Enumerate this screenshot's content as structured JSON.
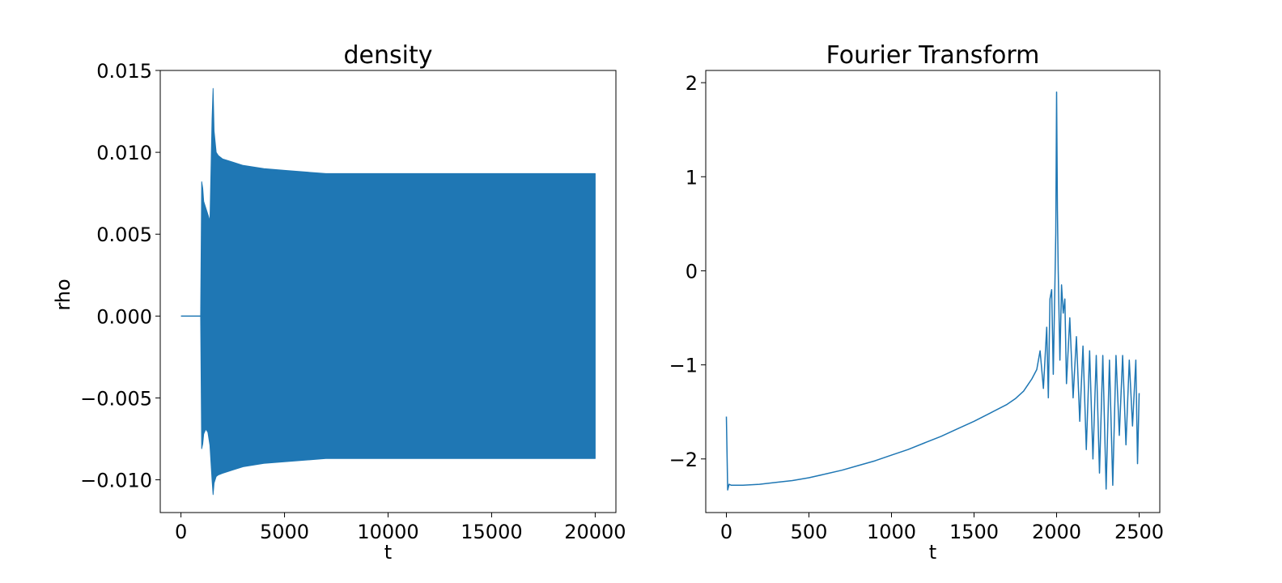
{
  "chart_data": [
    {
      "type": "line",
      "title": "density",
      "xlabel": "t",
      "ylabel": "rho",
      "xlim": [
        -1000,
        21000
      ],
      "ylim": [
        -0.012,
        0.015
      ],
      "xticks": [
        0,
        5000,
        10000,
        15000,
        20000
      ],
      "xtick_labels": [
        "0",
        "5000",
        "10000",
        "15000",
        "20000"
      ],
      "yticks": [
        -0.01,
        -0.005,
        0.0,
        0.005,
        0.01,
        0.015
      ],
      "ytick_labels": [
        "−0.010",
        "−0.005",
        "0.000",
        "0.005",
        "0.010",
        "0.015"
      ],
      "grid": false,
      "color": "#1f77b4",
      "series": [
        {
          "flat_segment": {
            "x": [
              0,
              950
            ],
            "y": 0.0
          },
          "envelope": {
            "x": [
              950,
              1000,
              1050,
              1100,
              1200,
              1300,
              1400,
              1500,
              1550,
              1600,
              1700,
              1800,
              2000,
              2500,
              3000,
              4000,
              5000,
              6000,
              7000,
              10000,
              15000,
              20000
            ],
            "upper": [
              0.0,
              0.0082,
              0.0078,
              0.007,
              0.0066,
              0.0062,
              0.0058,
              0.012,
              0.0139,
              0.0113,
              0.01,
              0.0098,
              0.0096,
              0.0094,
              0.0092,
              0.009,
              0.0089,
              0.0088,
              0.0087,
              0.0087,
              0.0087,
              0.0087
            ],
            "lower": [
              0.0,
              -0.0081,
              -0.0078,
              -0.0072,
              -0.0069,
              -0.0071,
              -0.0079,
              -0.01,
              -0.0109,
              -0.0102,
              -0.0098,
              -0.0097,
              -0.0096,
              -0.0094,
              -0.0092,
              -0.009,
              -0.0089,
              -0.0088,
              -0.0087,
              -0.0087,
              -0.0087,
              -0.0087
            ]
          }
        }
      ]
    },
    {
      "type": "line",
      "title": "Fourier Transform",
      "xlabel": "t",
      "ylabel": "",
      "xlim": [
        -125,
        2625
      ],
      "ylim": [
        -2.57,
        2.13
      ],
      "xticks": [
        0,
        500,
        1000,
        1500,
        2000,
        2500
      ],
      "xtick_labels": [
        "0",
        "500",
        "1000",
        "1500",
        "2000",
        "2500"
      ],
      "yticks": [
        -2,
        -1,
        0,
        1,
        2
      ],
      "ytick_labels": [
        "−2",
        "−1",
        "0",
        "1",
        "2"
      ],
      "grid": false,
      "color": "#1f77b4",
      "series": [
        {
          "x": [
            0,
            8,
            16,
            30,
            60,
            100,
            200,
            300,
            400,
            500,
            600,
            700,
            800,
            900,
            1000,
            1100,
            1200,
            1300,
            1400,
            1500,
            1600,
            1700,
            1750,
            1800,
            1850,
            1880,
            1900,
            1920,
            1940,
            1950,
            1960,
            1970,
            1980,
            1990,
            1995,
            2000,
            2005,
            2010,
            2020,
            2030,
            2040,
            2050,
            2060,
            2080,
            2100,
            2120,
            2140,
            2160,
            2180,
            2200,
            2220,
            2240,
            2260,
            2280,
            2300,
            2320,
            2340,
            2360,
            2380,
            2400,
            2420,
            2440,
            2460,
            2480,
            2490,
            2500
          ],
          "y": [
            -1.55,
            -2.33,
            -2.27,
            -2.28,
            -2.28,
            -2.28,
            -2.27,
            -2.25,
            -2.23,
            -2.2,
            -2.16,
            -2.12,
            -2.07,
            -2.02,
            -1.96,
            -1.9,
            -1.83,
            -1.76,
            -1.68,
            -1.6,
            -1.51,
            -1.42,
            -1.36,
            -1.28,
            -1.15,
            -1.05,
            -0.85,
            -1.25,
            -0.6,
            -1.35,
            -0.3,
            -0.2,
            -1.1,
            -0.1,
            0.4,
            1.9,
            0.65,
            0.0,
            -0.95,
            -0.15,
            -0.45,
            -0.3,
            -1.2,
            -0.5,
            -1.35,
            -0.7,
            -1.6,
            -0.8,
            -1.9,
            -0.85,
            -2.0,
            -0.9,
            -2.15,
            -0.9,
            -2.32,
            -0.95,
            -2.28,
            -0.9,
            -1.75,
            -0.9,
            -1.85,
            -0.95,
            -1.65,
            -0.95,
            -2.05,
            -1.3
          ]
        }
      ]
    }
  ]
}
